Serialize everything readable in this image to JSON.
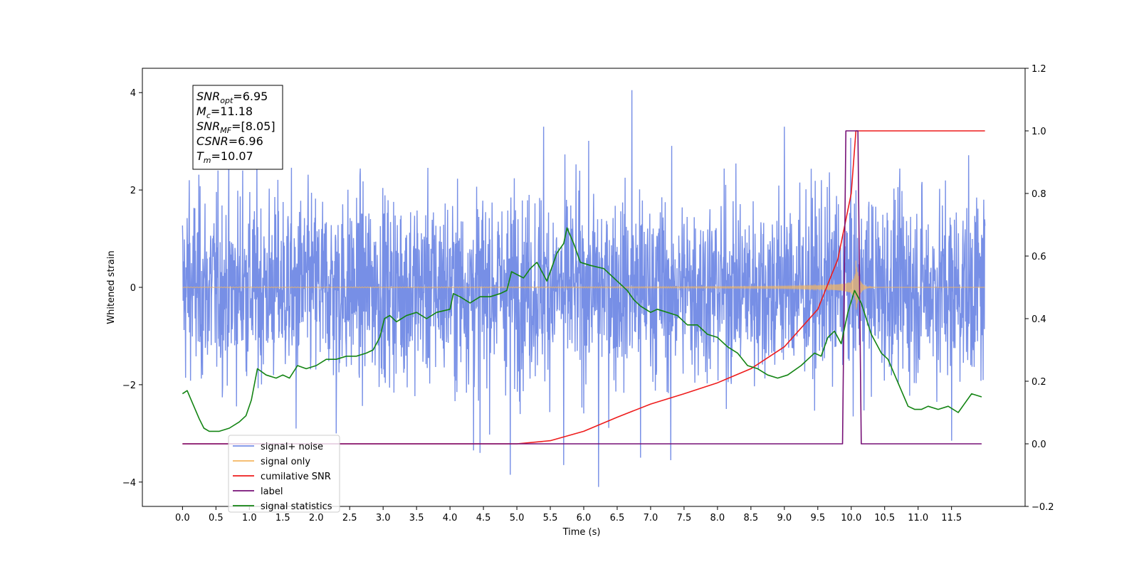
{
  "chart_data": {
    "type": "line",
    "xlabel": "Time (s)",
    "ylabel": "Whitened strain",
    "xlim": [
      -0.6,
      12.6
    ],
    "ylim": [
      -4.5,
      4.5
    ],
    "y2lim": [
      -0.2,
      1.2
    ],
    "x_ticks": [
      0.0,
      0.5,
      1.0,
      1.5,
      2.0,
      2.5,
      3.0,
      3.5,
      4.0,
      4.5,
      5.0,
      5.5,
      6.0,
      6.5,
      7.0,
      7.5,
      8.0,
      8.5,
      9.0,
      9.5,
      10.0,
      10.5,
      11.0,
      11.5
    ],
    "x_tick_labels": [
      "0.0",
      "0.5",
      "1.0",
      "1.5",
      "2.0",
      "2.5",
      "3.0",
      "3.5",
      "4.0",
      "4.5",
      "5.0",
      "5.5",
      "6.0",
      "6.5",
      "7.0",
      "7.5",
      "8.0",
      "8.5",
      "9.0",
      "9.5",
      "10.0",
      "10.5",
      "11.0",
      "11.5"
    ],
    "y_ticks": [
      -4,
      -2,
      0,
      2,
      4
    ],
    "y_tick_labels": [
      "−4",
      "−2",
      "0",
      "2",
      "4"
    ],
    "y2_ticks": [
      -0.2,
      0.0,
      0.2,
      0.4,
      0.6,
      0.8,
      1.0,
      1.2
    ],
    "y2_tick_labels": [
      "−0.2",
      "0.0",
      "0.2",
      "0.4",
      "0.6",
      "0.8",
      "1.0",
      "1.2"
    ],
    "grid": false,
    "legend_position": "lower-left",
    "annotation": {
      "lines": [
        {
          "main": "SNR",
          "sub": "opt",
          "rest": "=6.95"
        },
        {
          "main": "M",
          "sub": "c",
          "rest": "=11.18"
        },
        {
          "main": "SNR",
          "sub": "MF",
          "rest": "=[8.05]"
        },
        {
          "main": "CSNR",
          "sub": "",
          "rest": "=6.96"
        },
        {
          "main": "T",
          "sub": "m",
          "rest": "=10.07"
        }
      ]
    },
    "series": [
      {
        "name": "signal+ noise",
        "color": "#778fe6",
        "axis": "left",
        "style": "noise",
        "x_range": [
          0.0,
          12.0
        ],
        "typical_amplitude": 1.0,
        "extremes": [
          {
            "x": 0.1,
            "y": 2.2
          },
          {
            "x": 0.9,
            "y": 2.4
          },
          {
            "x": 1.7,
            "y": -2.9
          },
          {
            "x": 2.3,
            "y": -3.0
          },
          {
            "x": 4.35,
            "y": -3.35
          },
          {
            "x": 4.45,
            "y": -3.4
          },
          {
            "x": 4.9,
            "y": -3.85
          },
          {
            "x": 5.4,
            "y": 3.3
          },
          {
            "x": 5.7,
            "y": -3.65
          },
          {
            "x": 6.22,
            "y": -4.1
          },
          {
            "x": 6.72,
            "y": 4.05
          },
          {
            "x": 6.85,
            "y": -3.5
          },
          {
            "x": 7.3,
            "y": -3.55
          },
          {
            "x": 9.0,
            "y": 3.3
          },
          {
            "x": 11.5,
            "y": -3.15
          }
        ]
      },
      {
        "name": "signal only",
        "color": "#f5b660",
        "axis": "left",
        "style": "chirp",
        "x_range": [
          0.0,
          12.0
        ],
        "merger_time": 10.07,
        "peak_amplitude": 0.55
      },
      {
        "name": "cumilative SNR",
        "color": "#ee1c1c",
        "axis": "right",
        "x": [
          0.0,
          5.0,
          5.5,
          6.0,
          6.5,
          7.0,
          7.5,
          8.0,
          8.5,
          9.0,
          9.5,
          9.8,
          10.0,
          10.07,
          10.1,
          11.0,
          12.0
        ],
        "values": [
          0.0,
          0.0,
          0.01,
          0.04,
          0.085,
          0.127,
          0.16,
          0.195,
          0.24,
          0.31,
          0.43,
          0.59,
          0.8,
          1.0,
          1.0,
          1.0,
          1.0
        ]
      },
      {
        "name": "label",
        "color": "#771177",
        "axis": "right",
        "x": [
          0.0,
          9.87,
          9.92,
          10.1,
          10.15,
          11.95
        ],
        "values": [
          0.0,
          0.0,
          1.0,
          1.0,
          0.0,
          0.0
        ]
      },
      {
        "name": "signal statistics",
        "color": "#138413",
        "axis": "right",
        "x": [
          0.0,
          0.07,
          0.15,
          0.25,
          0.32,
          0.4,
          0.55,
          0.7,
          0.85,
          0.95,
          1.03,
          1.12,
          1.25,
          1.4,
          1.5,
          1.6,
          1.72,
          1.85,
          2.0,
          2.15,
          2.3,
          2.45,
          2.6,
          2.75,
          2.85,
          2.95,
          3.02,
          3.1,
          3.2,
          3.35,
          3.5,
          3.65,
          3.8,
          4.0,
          4.05,
          4.15,
          4.3,
          4.45,
          4.6,
          4.75,
          4.85,
          4.92,
          5.1,
          5.2,
          5.3,
          5.45,
          5.6,
          5.7,
          5.75,
          5.85,
          5.95,
          6.1,
          6.3,
          6.45,
          6.55,
          6.65,
          6.75,
          6.85,
          7.0,
          7.1,
          7.25,
          7.4,
          7.55,
          7.7,
          7.85,
          8.0,
          8.15,
          8.3,
          8.45,
          8.6,
          8.75,
          8.9,
          9.05,
          9.25,
          9.45,
          9.55,
          9.65,
          9.75,
          9.85,
          9.95,
          10.05,
          10.15,
          10.3,
          10.45,
          10.55,
          10.65,
          10.75,
          10.85,
          10.95,
          11.05,
          11.15,
          11.3,
          11.45,
          11.6,
          11.7,
          11.8,
          11.95
        ],
        "values": [
          0.16,
          0.17,
          0.13,
          0.08,
          0.05,
          0.04,
          0.04,
          0.05,
          0.07,
          0.09,
          0.14,
          0.24,
          0.22,
          0.21,
          0.22,
          0.21,
          0.25,
          0.24,
          0.25,
          0.27,
          0.27,
          0.28,
          0.28,
          0.29,
          0.3,
          0.34,
          0.4,
          0.41,
          0.39,
          0.41,
          0.42,
          0.4,
          0.42,
          0.43,
          0.48,
          0.47,
          0.45,
          0.47,
          0.47,
          0.48,
          0.49,
          0.55,
          0.53,
          0.56,
          0.58,
          0.52,
          0.61,
          0.64,
          0.69,
          0.64,
          0.58,
          0.57,
          0.56,
          0.53,
          0.51,
          0.49,
          0.46,
          0.44,
          0.42,
          0.43,
          0.42,
          0.41,
          0.38,
          0.38,
          0.35,
          0.34,
          0.31,
          0.29,
          0.25,
          0.24,
          0.22,
          0.21,
          0.22,
          0.25,
          0.29,
          0.28,
          0.34,
          0.36,
          0.32,
          0.42,
          0.49,
          0.45,
          0.35,
          0.29,
          0.27,
          0.22,
          0.17,
          0.12,
          0.11,
          0.11,
          0.12,
          0.11,
          0.12,
          0.1,
          0.13,
          0.16,
          0.15
        ]
      }
    ]
  }
}
